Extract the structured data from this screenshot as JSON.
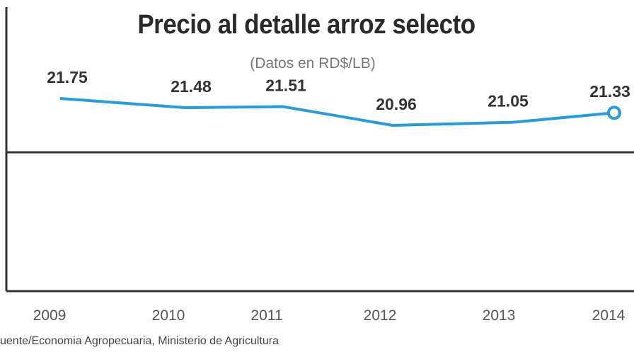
{
  "chart_data": {
    "type": "line",
    "title": "Precio al detalle arroz selecto",
    "subtitle": "(Datos en RD$/LB)",
    "categories": [
      "2009",
      "2010",
      "2011",
      "2012",
      "2013",
      "2014"
    ],
    "values": [
      21.75,
      21.48,
      21.51,
      20.96,
      21.05,
      21.33
    ],
    "data_labels": [
      "21.75",
      "21.48",
      "21.51",
      "20.96",
      "21.05",
      "21.33"
    ],
    "xlabel": "",
    "ylabel": "",
    "grid": false,
    "line_color": "#2a9ad8",
    "last_point_marker": "hollow-circle",
    "source": "uente/Economia Agropecuaria, Ministerio de Agricultura"
  }
}
